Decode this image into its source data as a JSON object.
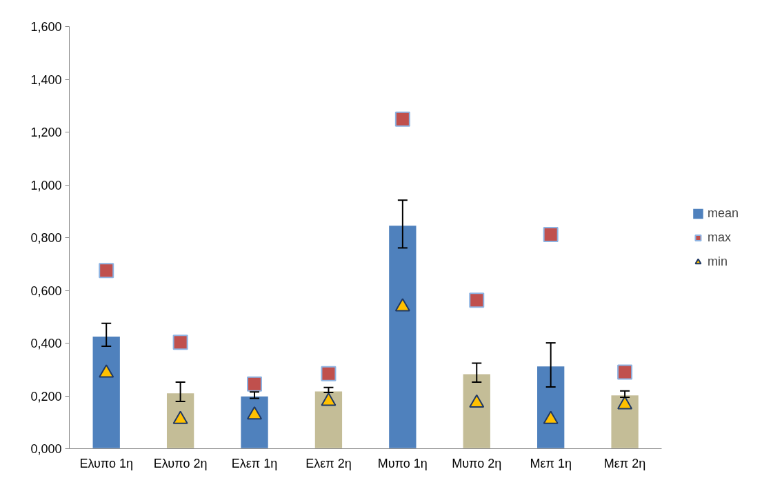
{
  "chart_data": {
    "type": "bar",
    "categories": [
      "Ελυπο 1η",
      "Ελυπο 2η",
      "Ελεπ 1η",
      "Ελεπ 2η",
      "Μυπο 1η",
      "Μυπο 2η",
      "Μεπ 1η",
      "Μεπ 2η"
    ],
    "series": [
      {
        "name": "mean",
        "colors": [
          "#4f81bd",
          "#c4bd97",
          "#4f81bd",
          "#c4bd97",
          "#4f81bd",
          "#c4bd97",
          "#4f81bd",
          "#c4bd97"
        ],
        "values": [
          0.427,
          0.212,
          0.2,
          0.219,
          0.847,
          0.284,
          0.314,
          0.204
        ],
        "errors": [
          [
            0.388,
            0.475
          ],
          [
            0.179,
            0.252
          ],
          [
            0.191,
            0.215
          ],
          [
            0.213,
            0.232
          ],
          [
            0.761,
            0.942
          ],
          [
            0.252,
            0.324
          ],
          [
            0.234,
            0.401
          ],
          [
            0.195,
            0.219
          ]
        ]
      },
      {
        "name": "max",
        "type": "scatter",
        "marker": "square",
        "color": "#c0504d",
        "values": [
          0.675,
          0.403,
          0.245,
          0.284,
          1.249,
          0.563,
          0.812,
          0.29
        ]
      },
      {
        "name": "min",
        "type": "scatter",
        "marker": "triangle",
        "color": "#ffc000",
        "values": [
          0.287,
          0.111,
          0.128,
          0.18,
          0.538,
          0.173,
          0.111,
          0.167
        ]
      }
    ],
    "ylim": [
      0,
      1.6
    ],
    "yticks": [
      {
        "value": 0,
        "label": "0,000"
      },
      {
        "value": 0.2,
        "label": "0,200"
      },
      {
        "value": 0.4,
        "label": "0,400"
      },
      {
        "value": 0.6,
        "label": "0,600"
      },
      {
        "value": 0.8,
        "label": "0,800"
      },
      {
        "value": 1.0,
        "label": "1,000"
      },
      {
        "value": 1.2,
        "label": "1,200"
      },
      {
        "value": 1.4,
        "label": "1,400"
      },
      {
        "value": 1.6,
        "label": "1,600"
      }
    ],
    "grid": false,
    "legend": "right"
  }
}
